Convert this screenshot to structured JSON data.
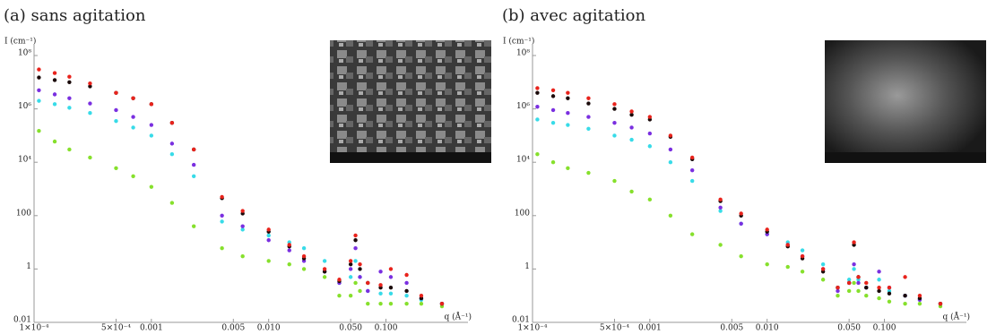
{
  "chart_data": [
    {
      "type": "scatter",
      "title": "(a) sans agitation",
      "ylabel": "I (cm⁻¹)",
      "xlabel": "q (Å⁻¹)",
      "xscale": "log",
      "yscale": "log",
      "xlim": [
        0.0001,
        0.5
      ],
      "ylim": [
        0.01,
        100000000
      ],
      "xticks": [
        {
          "value": 0.0001,
          "label": "1×10⁻⁴"
        },
        {
          "value": 0.0005,
          "label": "5×10⁻⁴"
        },
        0.001,
        0.005,
        {
          "value": 0.01,
          "label": "0.010"
        },
        {
          "value": 0.05,
          "label": "0.050"
        },
        {
          "value": 0.1,
          "label": "0.100"
        }
      ],
      "yticks": [
        {
          "value": 100000000,
          "label": "10⁸"
        },
        {
          "value": 1000000,
          "label": "10⁶"
        },
        {
          "value": 10000,
          "label": "10⁴"
        },
        100,
        1,
        0.01
      ],
      "x": [
        0.00011,
        0.00015,
        0.0002,
        0.0003,
        0.0005,
        0.0007,
        0.001,
        0.0015,
        0.0023,
        0.004,
        0.006,
        0.01,
        0.015,
        0.02,
        0.03,
        0.04,
        0.05,
        0.055,
        0.06,
        0.07,
        0.09,
        0.11,
        0.15,
        0.2,
        0.3
      ],
      "series": [
        {
          "color": "#e8231c",
          "values": [
            30000000,
            22000000,
            16000000,
            9000000,
            4000000,
            2500000,
            1500000,
            300000,
            30000,
            500,
            150,
            30,
            8,
            3,
            1,
            0.4,
            2,
            18,
            1.5,
            0.3,
            0.25,
            1,
            0.6,
            0.1,
            0.05
          ]
        },
        {
          "color": "#1a0a0a",
          "values": [
            15000000,
            12000000,
            10000000,
            7000000,
            4000000,
            2500000,
            1500000,
            300000,
            30000,
            450,
            120,
            25,
            7,
            2.5,
            0.8,
            0.35,
            1.5,
            12,
            1,
            0.3,
            0.2,
            0.2,
            0.15,
            0.08,
            0.05
          ]
        },
        {
          "color": "#7a2fe0",
          "values": [
            5000000,
            3500000,
            2500000,
            1600000,
            900000,
            500000,
            250000,
            50000,
            8000,
            100,
            40,
            12,
            5,
            2,
            0.8,
            0.3,
            1,
            6,
            0.5,
            0.15,
            0.8,
            0.5,
            0.3,
            0.08,
            0.05
          ]
        },
        {
          "color": "#38dbe8",
          "values": [
            2000000,
            1500000,
            1100000,
            700000,
            350000,
            200000,
            100000,
            20000,
            3000,
            60,
            30,
            18,
            10,
            6,
            2,
            0.3,
            0.5,
            2,
            0.5,
            0.15,
            0.12,
            0.12,
            0.1,
            0.07,
            0.05
          ]
        },
        {
          "color": "#86e02c",
          "values": [
            150000,
            60000,
            30000,
            15000,
            6000,
            3000,
            1200,
            300,
            40,
            6,
            3,
            2,
            1.5,
            1,
            0.5,
            0.1,
            0.1,
            0.3,
            0.15,
            0.05,
            0.05,
            0.05,
            0.05,
            0.05,
            0.04
          ]
        }
      ]
    },
    {
      "type": "scatter",
      "title": "(b) avec agitation",
      "ylabel": "I (cm⁻¹)",
      "xlabel": "q (Å⁻¹)",
      "xscale": "log",
      "yscale": "log",
      "xlim": [
        0.0001,
        0.5
      ],
      "ylim": [
        0.01,
        100000000
      ],
      "xticks": [
        {
          "value": 0.0001,
          "label": "1×10⁻⁴"
        },
        {
          "value": 0.0005,
          "label": "5×10⁻⁴"
        },
        0.001,
        0.005,
        {
          "value": 0.01,
          "label": "0.010"
        },
        {
          "value": 0.05,
          "label": "0.050"
        },
        {
          "value": 0.1,
          "label": "0.100"
        }
      ],
      "yticks": [
        {
          "value": 100000000,
          "label": "10⁸"
        },
        {
          "value": 1000000,
          "label": "10⁶"
        },
        {
          "value": 10000,
          "label": "10⁴"
        },
        100,
        1,
        0.01
      ],
      "x": [
        0.00011,
        0.00015,
        0.0002,
        0.0003,
        0.0005,
        0.0007,
        0.001,
        0.0015,
        0.0023,
        0.004,
        0.006,
        0.01,
        0.015,
        0.02,
        0.03,
        0.04,
        0.05,
        0.055,
        0.06,
        0.07,
        0.09,
        0.11,
        0.15,
        0.2,
        0.3
      ],
      "series": [
        {
          "color": "#e8231c",
          "values": [
            6000000,
            5000000,
            4000000,
            2500000,
            1500000,
            800000,
            500000,
            100000,
            15000,
            400,
            120,
            30,
            8,
            3,
            1,
            0.2,
            0.3,
            10,
            0.5,
            0.3,
            0.2,
            0.2,
            0.5,
            0.1,
            0.05
          ]
        },
        {
          "color": "#1a0a0a",
          "values": [
            4000000,
            3000000,
            2500000,
            1600000,
            1000000,
            600000,
            400000,
            90000,
            13000,
            350,
            100,
            25,
            7,
            2.5,
            0.8,
            0.2,
            0.3,
            8,
            0.5,
            0.2,
            0.15,
            0.12,
            0.1,
            0.08,
            0.05
          ]
        },
        {
          "color": "#7a2fe0",
          "values": [
            1200000,
            900000,
            700000,
            500000,
            300000,
            200000,
            120000,
            30000,
            5000,
            200,
            50,
            20,
            8,
            3,
            1,
            0.15,
            0.3,
            1.5,
            0.3,
            0.2,
            0.8,
            0.2,
            0.1,
            0.07,
            0.05
          ]
        },
        {
          "color": "#38dbe8",
          "values": [
            400000,
            300000,
            250000,
            180000,
            100000,
            70000,
            40000,
            10000,
            2000,
            150,
            50,
            20,
            10,
            5,
            1.5,
            0.2,
            0.4,
            1,
            0.4,
            0.2,
            0.4,
            0.15,
            0.1,
            0.07,
            0.05
          ]
        },
        {
          "color": "#86e02c",
          "values": [
            20000,
            10000,
            6000,
            4000,
            2000,
            800,
            400,
            100,
            20,
            8,
            3,
            1.5,
            1.2,
            0.8,
            0.4,
            0.1,
            0.15,
            0.3,
            0.15,
            0.1,
            0.08,
            0.06,
            0.05,
            0.05,
            0.04
          ]
        }
      ]
    }
  ]
}
